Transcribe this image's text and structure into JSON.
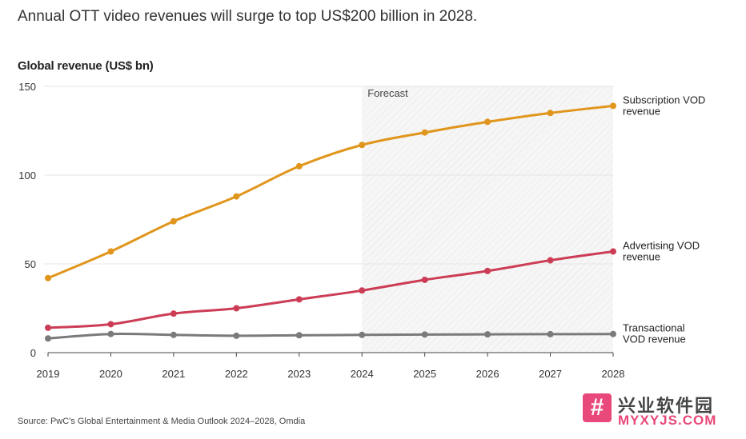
{
  "headline": "Annual OTT video revenues will surge to top US$200 billion in 2028.",
  "unit_label": "Global revenue (US$ bn)",
  "source": "Source: PwC's Global Entertainment & Media Outlook 2024–2028, Omdia",
  "watermark": {
    "cn": "兴业软件园",
    "en": "MYXYJS.COM",
    "icon": "hash-icon"
  },
  "chart_data": {
    "type": "line",
    "x": [
      "2019",
      "2020",
      "2021",
      "2022",
      "2023",
      "2024",
      "2025",
      "2026",
      "2027",
      "2028"
    ],
    "ylim": [
      0,
      150
    ],
    "yticks": [
      "0",
      "50",
      "100",
      "150"
    ],
    "grid": true,
    "forecast_label": "Forecast",
    "forecast_start": "2024",
    "series": [
      {
        "name": "Subscription VOD revenue",
        "label_lines": [
          "Subscription VOD",
          "revenue"
        ],
        "color": "#e0961c",
        "values": [
          42,
          57,
          74,
          88,
          105,
          117,
          124,
          130,
          135,
          139
        ]
      },
      {
        "name": "Advertising VOD revenue",
        "label_lines": [
          "Advertising VOD",
          "revenue"
        ],
        "color": "#cc3d55",
        "values": [
          14,
          16,
          22,
          25,
          30,
          35,
          41,
          46,
          52,
          57
        ]
      },
      {
        "name": "Transactional VOD revenue",
        "label_lines": [
          "Transactional",
          "VOD revenue"
        ],
        "color": "#7a7a7a",
        "values": [
          8,
          10.5,
          10,
          9.5,
          9.8,
          10,
          10.2,
          10.3,
          10.4,
          10.5
        ]
      }
    ]
  }
}
